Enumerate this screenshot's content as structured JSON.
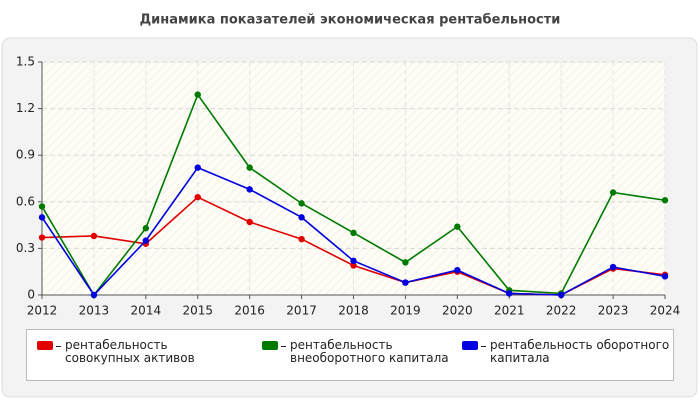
{
  "chart_data": {
    "type": "line",
    "title": "Динамика показателей экономическая рентабельности",
    "x": [
      2012,
      2013,
      2014,
      2015,
      2016,
      2017,
      2018,
      2019,
      2020,
      2021,
      2022,
      2023,
      2024
    ],
    "xlim": [
      2012,
      2024
    ],
    "xticks": [
      2012,
      2013,
      2014,
      2015,
      2016,
      2017,
      2018,
      2019,
      2020,
      2021,
      2022,
      2023,
      2024
    ],
    "ylim": [
      0,
      1.5
    ],
    "yticks": [
      0,
      0.3,
      0.6,
      0.9,
      1.2,
      1.5
    ],
    "grid": true,
    "series": [
      {
        "name": "рентабельность совокупных активов",
        "color": "#e00000",
        "values": [
          0.37,
          0.38,
          0.33,
          0.63,
          0.47,
          0.36,
          0.19,
          0.08,
          0.15,
          0.01,
          0.0,
          0.17,
          0.13
        ]
      },
      {
        "name": "рентабельность внеоборотного капитала",
        "color": "#007a00",
        "values": [
          0.57,
          0,
          0.43,
          1.29,
          0.82,
          0.59,
          0.4,
          0.21,
          0.44,
          0.03,
          0.01,
          0.66,
          0.61
        ]
      },
      {
        "name": "рентабельность оборотного капитала",
        "color": "#0000e0",
        "values": [
          0.5,
          0,
          0.35,
          0.82,
          0.68,
          0.5,
          0.22,
          0.08,
          0.16,
          0.01,
          0.0,
          0.18,
          0.12
        ]
      }
    ]
  }
}
